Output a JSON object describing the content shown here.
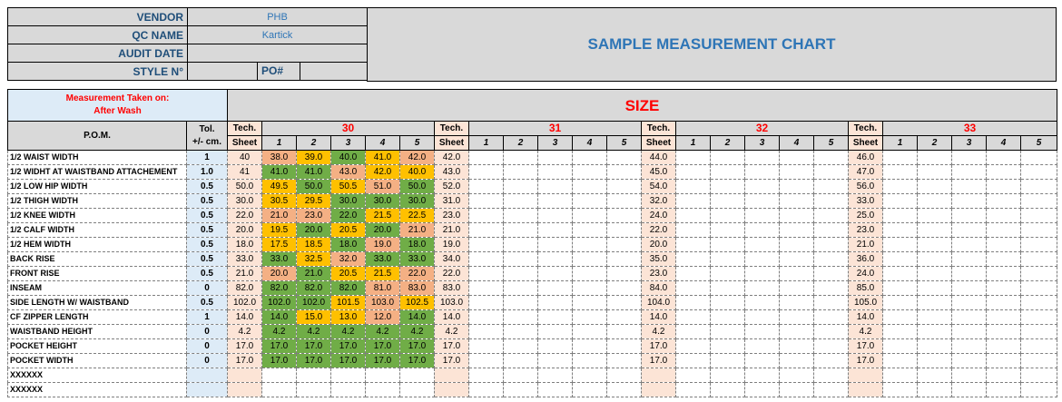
{
  "header": {
    "vendor_label": "VENDOR",
    "vendor_value": "PHB",
    "qc_label": "QC  NAME",
    "qc_value": "Kartick",
    "audit_label": "AUDIT DATE",
    "audit_value": "",
    "style_label": "STYLE N°",
    "style_value": "",
    "po_label": "PO#",
    "po_value": "",
    "title": "SAMPLE MEASUREMENT CHART"
  },
  "table": {
    "measurement_taken_label": "Measurement Taken on:",
    "measurement_taken_value": "After Wash",
    "size_label": "SIZE",
    "pom_label": "P.O.M.",
    "tol_label_1": "Tol.",
    "tol_label_2": "+/- cm.",
    "tech_label_1": "Tech.",
    "tech_label_2": "Sheet",
    "sizes": [
      {
        "size": "30",
        "tech_before": true
      },
      {
        "size": "31"
      },
      {
        "size": "32"
      },
      {
        "size": "33"
      }
    ],
    "sample_numbers": [
      "1",
      "2",
      "3",
      "4",
      "5"
    ],
    "rows": [
      {
        "pom": "1/2 WAIST WIDTH",
        "tol": "1",
        "tech": [
          "40",
          "42.0",
          "44.0",
          "46.0"
        ],
        "samples": [
          "38.0",
          "39.0",
          "40.0",
          "41.0",
          "42.0"
        ],
        "status": [
          "bad",
          "warn",
          "ok",
          "warn",
          "bad"
        ]
      },
      {
        "pom": "1/2 WIDHT AT WAISTBAND ATTACHEMENT",
        "tol": "1.0",
        "tech": [
          "41",
          "43.0",
          "45.0",
          "47.0"
        ],
        "samples": [
          "41.0",
          "41.0",
          "43.0",
          "42.0",
          "40.0"
        ],
        "status": [
          "ok",
          "ok",
          "bad",
          "warn",
          "warn"
        ]
      },
      {
        "pom": "1/2 LOW HIP WIDTH",
        "tol": "0.5",
        "tech": [
          "50.0",
          "52.0",
          "54.0",
          "56.0"
        ],
        "samples": [
          "49.5",
          "50.0",
          "50.5",
          "51.0",
          "50.0"
        ],
        "status": [
          "warn",
          "ok",
          "warn",
          "bad",
          "ok"
        ]
      },
      {
        "pom": "1/2 THIGH WIDTH",
        "tol": "0.5",
        "tech": [
          "30.0",
          "31.0",
          "32.0",
          "33.0"
        ],
        "samples": [
          "30.5",
          "29.5",
          "30.0",
          "30.0",
          "30.0"
        ],
        "status": [
          "warn",
          "warn",
          "ok",
          "ok",
          "ok"
        ]
      },
      {
        "pom": "1/2 KNEE WIDTH",
        "tol": "0.5",
        "tech": [
          "22.0",
          "23.0",
          "24.0",
          "25.0"
        ],
        "samples": [
          "21.0",
          "23.0",
          "22.0",
          "21.5",
          "22.5"
        ],
        "status": [
          "bad",
          "bad",
          "ok",
          "warn",
          "warn"
        ]
      },
      {
        "pom": "1/2 CALF WIDTH",
        "tol": "0.5",
        "tech": [
          "20.0",
          "21.0",
          "22.0",
          "23.0"
        ],
        "samples": [
          "19.5",
          "20.0",
          "20.5",
          "20.0",
          "21.0"
        ],
        "status": [
          "warn",
          "ok",
          "warn",
          "ok",
          "bad"
        ]
      },
      {
        "pom": "1/2 HEM WIDTH",
        "tol": "0.5",
        "tech": [
          "18.0",
          "19.0",
          "20.0",
          "21.0"
        ],
        "samples": [
          "17.5",
          "18.5",
          "18.0",
          "19.0",
          "18.0"
        ],
        "status": [
          "warn",
          "warn",
          "ok",
          "bad",
          "ok"
        ]
      },
      {
        "pom": "BACK RISE",
        "tol": "0.5",
        "tech": [
          "33.0",
          "34.0",
          "35.0",
          "36.0"
        ],
        "samples": [
          "33.0",
          "32.5",
          "32.0",
          "33.0",
          "33.0"
        ],
        "status": [
          "ok",
          "warn",
          "bad",
          "ok",
          "ok"
        ]
      },
      {
        "pom": "FRONT RISE",
        "tol": "0.5",
        "tech": [
          "21.0",
          "22.0",
          "23.0",
          "24.0"
        ],
        "samples": [
          "20.0",
          "21.0",
          "20.5",
          "21.5",
          "22.0"
        ],
        "status": [
          "bad",
          "ok",
          "warn",
          "warn",
          "bad"
        ]
      },
      {
        "pom": "INSEAM",
        "tol": "0",
        "tech": [
          "82.0",
          "83.0",
          "84.0",
          "85.0"
        ],
        "samples": [
          "82.0",
          "82.0",
          "82.0",
          "81.0",
          "83.0"
        ],
        "status": [
          "ok",
          "ok",
          "ok",
          "bad",
          "bad"
        ]
      },
      {
        "pom": "SIDE LENGTH W/ WAISTBAND",
        "tol": "0.5",
        "tech": [
          "102.0",
          "103.0",
          "104.0",
          "105.0"
        ],
        "samples": [
          "102.0",
          "102.0",
          "101.5",
          "103.0",
          "102.5"
        ],
        "status": [
          "ok",
          "ok",
          "warn",
          "bad",
          "warn"
        ]
      },
      {
        "pom": "CF ZIPPER LENGTH",
        "tol": "1",
        "tech": [
          "14.0",
          "14.0",
          "14.0",
          "14.0"
        ],
        "samples": [
          "14.0",
          "15.0",
          "13.0",
          "12.0",
          "14.0"
        ],
        "status": [
          "ok",
          "warn",
          "warn",
          "bad",
          "ok"
        ]
      },
      {
        "pom": "WAISTBAND HEIGHT",
        "tol": "0",
        "tech": [
          "4.2",
          "4.2",
          "4.2",
          "4.2"
        ],
        "samples": [
          "4.2",
          "4.2",
          "4.2",
          "4.2",
          "4.2"
        ],
        "status": [
          "ok",
          "ok",
          "ok",
          "ok",
          "ok"
        ]
      },
      {
        "pom": "POCKET HEIGHT",
        "tol": "0",
        "tech": [
          "17.0",
          "17.0",
          "17.0",
          "17.0"
        ],
        "samples": [
          "17.0",
          "17.0",
          "17.0",
          "17.0",
          "17.0"
        ],
        "status": [
          "ok",
          "ok",
          "ok",
          "ok",
          "ok"
        ]
      },
      {
        "pom": "POCKET WIDTH",
        "tol": "0",
        "tech": [
          "17.0",
          "17.0",
          "17.0",
          "17.0"
        ],
        "samples": [
          "17.0",
          "17.0",
          "17.0",
          "17.0",
          "17.0"
        ],
        "status": [
          "ok",
          "ok",
          "ok",
          "ok",
          "ok"
        ]
      },
      {
        "pom": "XXXXXX",
        "tol": "",
        "tech": [
          "",
          "",
          "",
          ""
        ],
        "samples": [
          "",
          "",
          "",
          "",
          ""
        ],
        "status": [
          "",
          "",
          "",
          "",
          ""
        ]
      },
      {
        "pom": "XXXXXX",
        "tol": "",
        "tech": [
          "",
          "",
          "",
          ""
        ],
        "samples": [
          "",
          "",
          "",
          "",
          ""
        ],
        "status": [
          "",
          "",
          "",
          "",
          ""
        ]
      }
    ]
  },
  "colors": {
    "ok": "#70ad47",
    "warn": "#ffc000",
    "bad": "#f4b084",
    "tech_sheet_bg": "#fce4d6",
    "tolerance_bg": "#ddebf7",
    "header_bg": "#d9d9d9",
    "size_text": "#ff0000",
    "title_text": "#2e75b6"
  }
}
